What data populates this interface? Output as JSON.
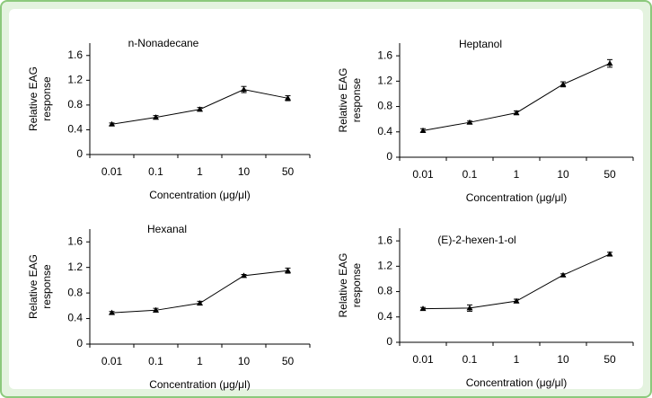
{
  "chart_data": [
    {
      "type": "line",
      "title": "n-Nonadecane",
      "ylabel": [
        "Relative EAG",
        "response"
      ],
      "xlabel": "Concentration (μg/μl)",
      "categories": [
        "0.01",
        "0.1",
        "1",
        "10",
        "50"
      ],
      "values": [
        0.49,
        0.6,
        0.73,
        1.05,
        0.91
      ],
      "errors": [
        0.02,
        0.03,
        0.03,
        0.05,
        0.04
      ],
      "color": "#000000",
      "ylim": [
        0,
        1.8
      ],
      "yticks": [
        0,
        0.4,
        0.8,
        1.2,
        1.6
      ]
    },
    {
      "type": "line",
      "title": "Heptanol",
      "ylabel": [
        "Relative EAG",
        "response"
      ],
      "xlabel": "Concentration (μg/μl)",
      "categories": [
        "0.01",
        "0.1",
        "1",
        "10",
        "50"
      ],
      "values": [
        0.42,
        0.55,
        0.7,
        1.15,
        1.48
      ],
      "errors": [
        0.03,
        0.02,
        0.03,
        0.04,
        0.06
      ],
      "color": "#000000",
      "ylim": [
        0,
        1.8
      ],
      "yticks": [
        0,
        0.4,
        0.8,
        1.2,
        1.6
      ]
    },
    {
      "type": "line",
      "title": "Hexanal",
      "ylabel": [
        "Relative EAG",
        "response"
      ],
      "xlabel": "Concentration (μg/μl)",
      "categories": [
        "0.01",
        "0.1",
        "1",
        "10",
        "50"
      ],
      "values": [
        0.49,
        0.53,
        0.64,
        1.07,
        1.15
      ],
      "errors": [
        0.02,
        0.03,
        0.03,
        0.02,
        0.04
      ],
      "color": "#000000",
      "ylim": [
        0,
        1.8
      ],
      "yticks": [
        0,
        0.4,
        0.8,
        1.2,
        1.6
      ]
    },
    {
      "type": "line",
      "title": "(E)-2-hexen-1-ol",
      "ylabel": [
        "Relative EAG",
        "response"
      ],
      "xlabel": "Concentration (μg/μl)",
      "categories": [
        "0.01",
        "0.1",
        "1",
        "10",
        "50"
      ],
      "values": [
        0.53,
        0.54,
        0.65,
        1.06,
        1.39
      ],
      "errors": [
        0.02,
        0.05,
        0.03,
        0.02,
        0.03
      ],
      "color": "#000000",
      "ylim": [
        0,
        1.8
      ],
      "yticks": [
        0,
        0.4,
        0.8,
        1.2,
        1.6
      ]
    }
  ]
}
